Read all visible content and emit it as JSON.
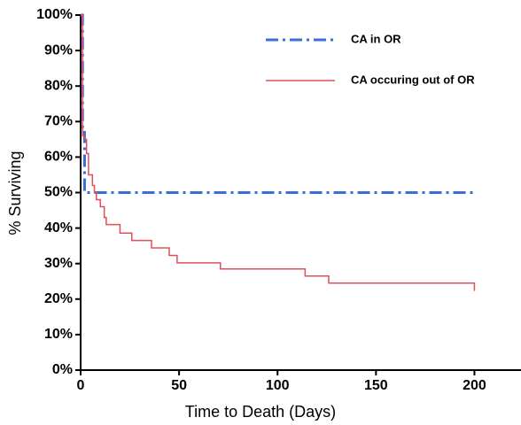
{
  "chart_data": {
    "type": "step",
    "xlabel": "Time to Death (Days)",
    "ylabel": "% Surviving",
    "xlim": [
      0,
      225
    ],
    "ylim": [
      0,
      100
    ],
    "xticks": [
      0,
      50,
      100,
      150,
      200
    ],
    "yticks": [
      {
        "value": 0,
        "label": "0%"
      },
      {
        "value": 10,
        "label": "10%"
      },
      {
        "value": 20,
        "label": "20%"
      },
      {
        "value": 30,
        "label": "30%"
      },
      {
        "value": 40,
        "label": "40%"
      },
      {
        "value": 50,
        "label": "50%"
      },
      {
        "value": 60,
        "label": "60%"
      },
      {
        "value": 70,
        "label": "70%"
      },
      {
        "value": 80,
        "label": "80%"
      },
      {
        "value": 90,
        "label": "90%"
      },
      {
        "value": 100,
        "label": "100%"
      }
    ],
    "legend": "top-right",
    "series": [
      {
        "name": "CA in OR",
        "color": "#3a6fd8",
        "dash": "dashdot",
        "x": [
          0,
          1,
          2,
          200
        ],
        "values": [
          100,
          67,
          50,
          50
        ]
      },
      {
        "name": "CA occuring out of OR",
        "color": "#e0505a",
        "dash": "solid",
        "x": [
          0,
          1,
          2,
          3,
          4,
          6,
          7,
          8,
          10,
          12,
          13,
          20,
          26,
          36,
          45,
          49,
          71,
          114,
          126,
          200
        ],
        "values": [
          100,
          66,
          65,
          61,
          55,
          52,
          50,
          48,
          46,
          43,
          41,
          38.6,
          36.5,
          34.4,
          32.3,
          30.2,
          28.5,
          26.5,
          24.5,
          22.3
        ]
      }
    ]
  }
}
